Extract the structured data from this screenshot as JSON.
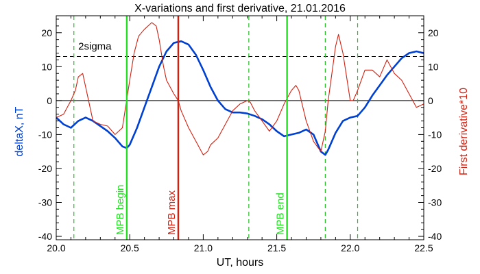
{
  "chart_data": {
    "type": "line",
    "title": "X-variations and first derivative, 21.01.2016",
    "xlabel": "UT, hours",
    "ylabel_left": "deltaX, nT",
    "ylabel_right": "First derivative*10",
    "xlim": [
      20.0,
      22.5
    ],
    "ylim": [
      -41,
      25
    ],
    "x_ticks": [
      "20.0",
      "20.5",
      "21.0",
      "21.5",
      "22.0",
      "22.5"
    ],
    "y_ticks": [
      "20",
      "10",
      "0",
      "-10",
      "-20",
      "-30",
      "-40"
    ],
    "colors": {
      "deltaX": "#0040d0",
      "derivative": "#d02010",
      "mpb_begin_end": "#20e020",
      "mpb_max": "#d02010",
      "sigma_lines": "#20c020"
    },
    "series": [
      {
        "name": "deltaX, nT",
        "color": "#0040d0",
        "x": [
          20.0,
          20.05,
          20.1,
          20.15,
          20.2,
          20.25,
          20.3,
          20.35,
          20.4,
          20.45,
          20.48,
          20.5,
          20.55,
          20.6,
          20.65,
          20.7,
          20.75,
          20.8,
          20.85,
          20.9,
          20.95,
          21.0,
          21.05,
          21.1,
          21.15,
          21.2,
          21.25,
          21.3,
          21.35,
          21.4,
          21.45,
          21.5,
          21.55,
          21.6,
          21.65,
          21.7,
          21.75,
          21.8,
          21.83,
          21.85,
          21.9,
          21.95,
          22.0,
          22.05,
          22.1,
          22.15,
          22.2,
          22.25,
          22.3,
          22.35,
          22.4,
          22.45,
          22.5
        ],
        "y": [
          -5,
          -7,
          -8,
          -6,
          -5,
          -6,
          -7.5,
          -9,
          -11,
          -13.5,
          -14,
          -13,
          -8,
          -2,
          4,
          10,
          14.5,
          17,
          17.5,
          16.5,
          13.5,
          9,
          4,
          0,
          -2.5,
          -3.5,
          -3.5,
          -3.8,
          -4.5,
          -5.5,
          -7,
          -9,
          -10.5,
          -10,
          -9.5,
          -8.5,
          -10,
          -15,
          -16,
          -14.5,
          -9.5,
          -6,
          -5,
          -4.5,
          -2,
          1.5,
          4.5,
          7.5,
          10,
          12.5,
          14,
          14.5,
          14
        ]
      },
      {
        "name": "First derivative*10",
        "color": "#d02010",
        "x": [
          20.0,
          20.05,
          20.1,
          20.13,
          20.15,
          20.18,
          20.2,
          20.23,
          20.25,
          20.3,
          20.35,
          20.4,
          20.45,
          20.5,
          20.53,
          20.56,
          20.6,
          20.65,
          20.68,
          20.7,
          20.73,
          20.75,
          20.8,
          20.83,
          20.85,
          20.9,
          20.95,
          21.0,
          21.03,
          21.05,
          21.1,
          21.15,
          21.2,
          21.25,
          21.3,
          21.32,
          21.35,
          21.4,
          21.45,
          21.5,
          21.55,
          21.6,
          21.63,
          21.65,
          21.7,
          21.75,
          21.8,
          21.83,
          21.85,
          21.9,
          21.92,
          21.95,
          22.0,
          22.02,
          22.05,
          22.1,
          22.15,
          22.2,
          22.25,
          22.3,
          22.35,
          22.4,
          22.45,
          22.5
        ],
        "y": [
          -5,
          -4,
          0,
          3,
          7,
          8,
          4,
          -2,
          -6,
          -7,
          -7.5,
          -10,
          -8,
          6,
          14,
          19,
          21,
          23,
          22,
          18,
          10,
          6,
          2,
          0,
          -3,
          -8,
          -12,
          -16,
          -15,
          -13,
          -11,
          -7,
          -3,
          -1,
          0,
          -0.5,
          -3,
          -6,
          -9,
          -6,
          -1,
          3,
          4.5,
          3,
          -6,
          -12,
          -15,
          -9,
          0,
          16,
          19.5,
          14,
          0,
          0,
          3,
          9,
          9,
          7,
          12,
          8,
          6,
          2,
          -2,
          -1
        ]
      }
    ],
    "reference_lines": {
      "zero": 0,
      "sigma_level": 13,
      "sigma_label": "2sigma"
    },
    "vertical_markers": [
      {
        "label": "MPB begin",
        "x": 20.48,
        "color": "#20e020"
      },
      {
        "label": "MPB max",
        "x": 20.83,
        "color": "#d02010"
      },
      {
        "label": "MPB end",
        "x": 21.57,
        "color": "#20e020"
      }
    ],
    "dashed_verticals": [
      20.12,
      21.31,
      21.83,
      22.05
    ]
  }
}
